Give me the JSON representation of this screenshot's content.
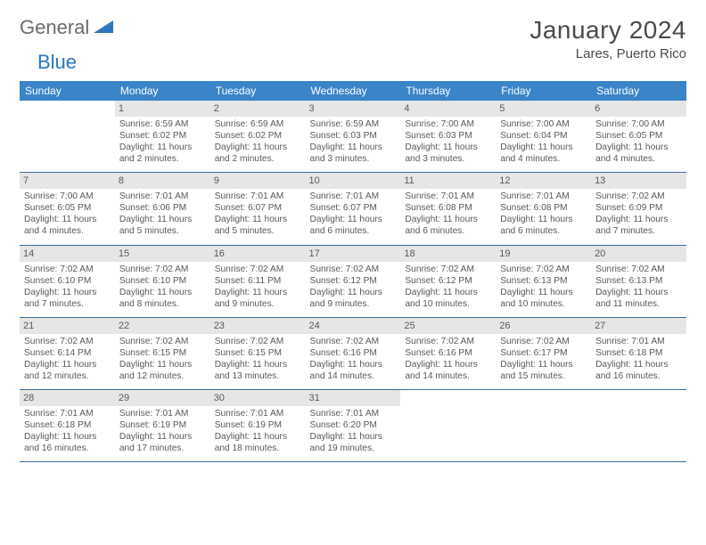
{
  "logo": {
    "word1": "General",
    "word2": "Blue"
  },
  "title": "January 2024",
  "location": "Lares, Puerto Rico",
  "header_bg": "#3a84c8",
  "header_fg": "#ffffff",
  "daynum_bg": "#e6e6e6",
  "cell_border": "#3a6fa3",
  "daynames": [
    "Sunday",
    "Monday",
    "Tuesday",
    "Wednesday",
    "Thursday",
    "Friday",
    "Saturday"
  ],
  "weeks": [
    [
      {
        "day": "",
        "lines": [
          "",
          "",
          "",
          ""
        ]
      },
      {
        "day": "1",
        "lines": [
          "Sunrise: 6:59 AM",
          "Sunset: 6:02 PM",
          "Daylight: 11 hours",
          "and 2 minutes."
        ]
      },
      {
        "day": "2",
        "lines": [
          "Sunrise: 6:59 AM",
          "Sunset: 6:02 PM",
          "Daylight: 11 hours",
          "and 2 minutes."
        ]
      },
      {
        "day": "3",
        "lines": [
          "Sunrise: 6:59 AM",
          "Sunset: 6:03 PM",
          "Daylight: 11 hours",
          "and 3 minutes."
        ]
      },
      {
        "day": "4",
        "lines": [
          "Sunrise: 7:00 AM",
          "Sunset: 6:03 PM",
          "Daylight: 11 hours",
          "and 3 minutes."
        ]
      },
      {
        "day": "5",
        "lines": [
          "Sunrise: 7:00 AM",
          "Sunset: 6:04 PM",
          "Daylight: 11 hours",
          "and 4 minutes."
        ]
      },
      {
        "day": "6",
        "lines": [
          "Sunrise: 7:00 AM",
          "Sunset: 6:05 PM",
          "Daylight: 11 hours",
          "and 4 minutes."
        ]
      }
    ],
    [
      {
        "day": "7",
        "lines": [
          "Sunrise: 7:00 AM",
          "Sunset: 6:05 PM",
          "Daylight: 11 hours",
          "and 4 minutes."
        ]
      },
      {
        "day": "8",
        "lines": [
          "Sunrise: 7:01 AM",
          "Sunset: 6:06 PM",
          "Daylight: 11 hours",
          "and 5 minutes."
        ]
      },
      {
        "day": "9",
        "lines": [
          "Sunrise: 7:01 AM",
          "Sunset: 6:07 PM",
          "Daylight: 11 hours",
          "and 5 minutes."
        ]
      },
      {
        "day": "10",
        "lines": [
          "Sunrise: 7:01 AM",
          "Sunset: 6:07 PM",
          "Daylight: 11 hours",
          "and 6 minutes."
        ]
      },
      {
        "day": "11",
        "lines": [
          "Sunrise: 7:01 AM",
          "Sunset: 6:08 PM",
          "Daylight: 11 hours",
          "and 6 minutes."
        ]
      },
      {
        "day": "12",
        "lines": [
          "Sunrise: 7:01 AM",
          "Sunset: 6:08 PM",
          "Daylight: 11 hours",
          "and 6 minutes."
        ]
      },
      {
        "day": "13",
        "lines": [
          "Sunrise: 7:02 AM",
          "Sunset: 6:09 PM",
          "Daylight: 11 hours",
          "and 7 minutes."
        ]
      }
    ],
    [
      {
        "day": "14",
        "lines": [
          "Sunrise: 7:02 AM",
          "Sunset: 6:10 PM",
          "Daylight: 11 hours",
          "and 7 minutes."
        ]
      },
      {
        "day": "15",
        "lines": [
          "Sunrise: 7:02 AM",
          "Sunset: 6:10 PM",
          "Daylight: 11 hours",
          "and 8 minutes."
        ]
      },
      {
        "day": "16",
        "lines": [
          "Sunrise: 7:02 AM",
          "Sunset: 6:11 PM",
          "Daylight: 11 hours",
          "and 9 minutes."
        ]
      },
      {
        "day": "17",
        "lines": [
          "Sunrise: 7:02 AM",
          "Sunset: 6:12 PM",
          "Daylight: 11 hours",
          "and 9 minutes."
        ]
      },
      {
        "day": "18",
        "lines": [
          "Sunrise: 7:02 AM",
          "Sunset: 6:12 PM",
          "Daylight: 11 hours",
          "and 10 minutes."
        ]
      },
      {
        "day": "19",
        "lines": [
          "Sunrise: 7:02 AM",
          "Sunset: 6:13 PM",
          "Daylight: 11 hours",
          "and 10 minutes."
        ]
      },
      {
        "day": "20",
        "lines": [
          "Sunrise: 7:02 AM",
          "Sunset: 6:13 PM",
          "Daylight: 11 hours",
          "and 11 minutes."
        ]
      }
    ],
    [
      {
        "day": "21",
        "lines": [
          "Sunrise: 7:02 AM",
          "Sunset: 6:14 PM",
          "Daylight: 11 hours",
          "and 12 minutes."
        ]
      },
      {
        "day": "22",
        "lines": [
          "Sunrise: 7:02 AM",
          "Sunset: 6:15 PM",
          "Daylight: 11 hours",
          "and 12 minutes."
        ]
      },
      {
        "day": "23",
        "lines": [
          "Sunrise: 7:02 AM",
          "Sunset: 6:15 PM",
          "Daylight: 11 hours",
          "and 13 minutes."
        ]
      },
      {
        "day": "24",
        "lines": [
          "Sunrise: 7:02 AM",
          "Sunset: 6:16 PM",
          "Daylight: 11 hours",
          "and 14 minutes."
        ]
      },
      {
        "day": "25",
        "lines": [
          "Sunrise: 7:02 AM",
          "Sunset: 6:16 PM",
          "Daylight: 11 hours",
          "and 14 minutes."
        ]
      },
      {
        "day": "26",
        "lines": [
          "Sunrise: 7:02 AM",
          "Sunset: 6:17 PM",
          "Daylight: 11 hours",
          "and 15 minutes."
        ]
      },
      {
        "day": "27",
        "lines": [
          "Sunrise: 7:01 AM",
          "Sunset: 6:18 PM",
          "Daylight: 11 hours",
          "and 16 minutes."
        ]
      }
    ],
    [
      {
        "day": "28",
        "lines": [
          "Sunrise: 7:01 AM",
          "Sunset: 6:18 PM",
          "Daylight: 11 hours",
          "and 16 minutes."
        ]
      },
      {
        "day": "29",
        "lines": [
          "Sunrise: 7:01 AM",
          "Sunset: 6:19 PM",
          "Daylight: 11 hours",
          "and 17 minutes."
        ]
      },
      {
        "day": "30",
        "lines": [
          "Sunrise: 7:01 AM",
          "Sunset: 6:19 PM",
          "Daylight: 11 hours",
          "and 18 minutes."
        ]
      },
      {
        "day": "31",
        "lines": [
          "Sunrise: 7:01 AM",
          "Sunset: 6:20 PM",
          "Daylight: 11 hours",
          "and 19 minutes."
        ]
      },
      {
        "day": "",
        "lines": [
          "",
          "",
          "",
          ""
        ]
      },
      {
        "day": "",
        "lines": [
          "",
          "",
          "",
          ""
        ]
      },
      {
        "day": "",
        "lines": [
          "",
          "",
          "",
          ""
        ]
      }
    ]
  ]
}
